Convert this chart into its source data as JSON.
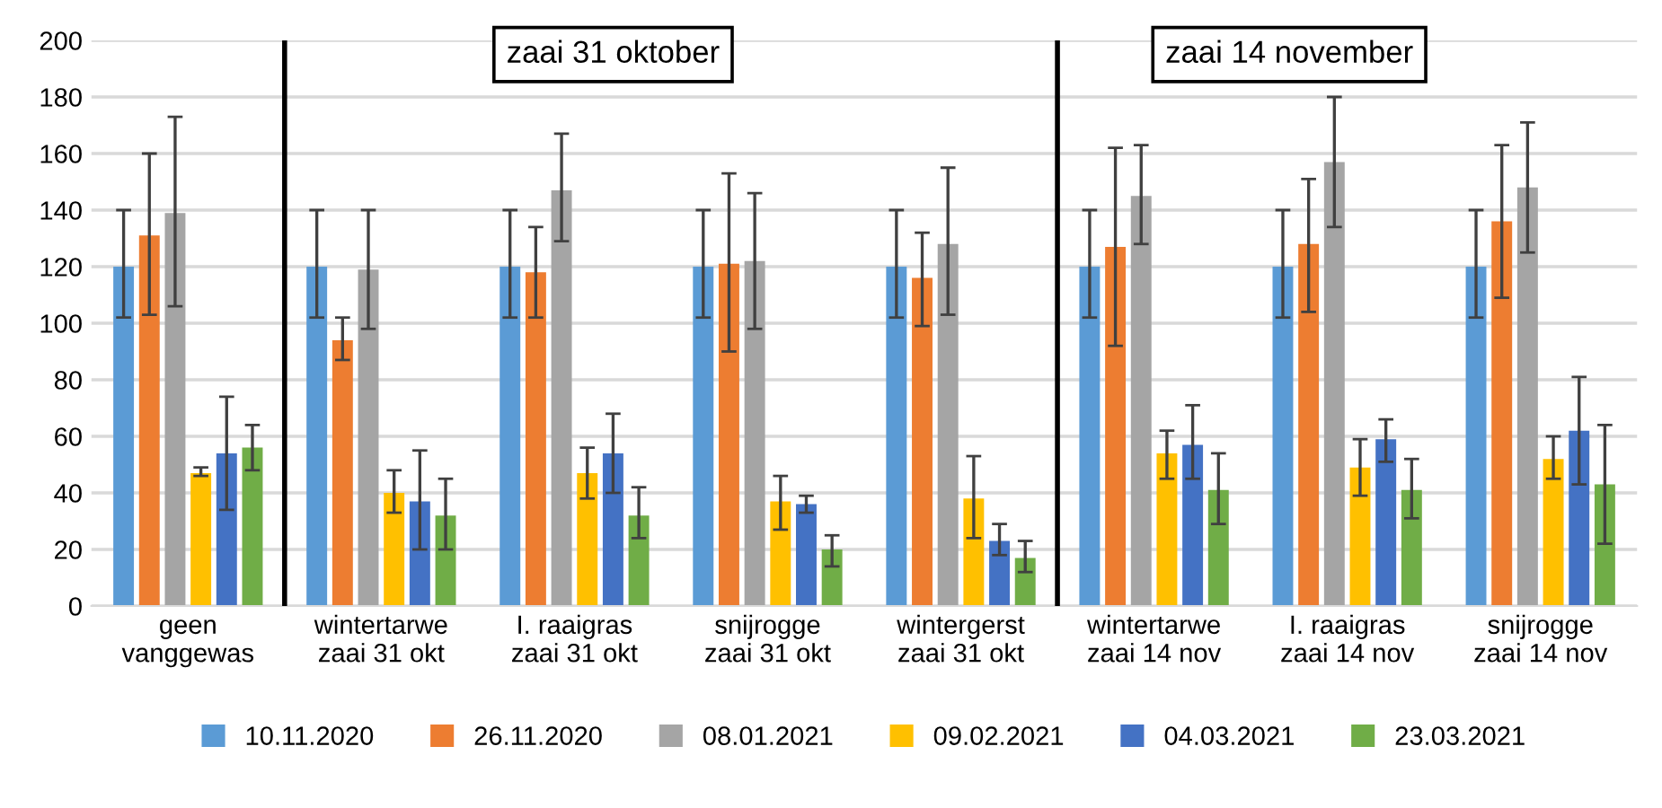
{
  "chart_data": {
    "type": "bar",
    "categories": [
      "geen\nvanggewas",
      "wintertarwe\nzaai 31 okt",
      "I. raaigras\nzaai 31 okt",
      "snijrogge\nzaai 31 okt",
      "wintergerst\nzaai 31 okt",
      "wintertarwe\nzaai 14 nov",
      "I. raaigras\nzaai 14 nov",
      "snijrogge\nzaai 14 nov"
    ],
    "series": [
      {
        "name": "10.11.2020",
        "color": "#5b9bd5",
        "values": [
          120,
          120,
          120,
          120,
          120,
          120,
          120,
          120
        ],
        "errors": [
          [
            102,
            140
          ],
          [
            102,
            140
          ],
          [
            102,
            140
          ],
          [
            102,
            140
          ],
          [
            102,
            140
          ],
          [
            102,
            140
          ],
          [
            102,
            140
          ],
          [
            102,
            140
          ]
        ]
      },
      {
        "name": "26.11.2020",
        "color": "#ed7d31",
        "values": [
          131,
          94,
          118,
          121,
          116,
          127,
          128,
          136
        ],
        "errors": [
          [
            103,
            160
          ],
          [
            87,
            102
          ],
          [
            102,
            134
          ],
          [
            90,
            153
          ],
          [
            99,
            132
          ],
          [
            92,
            162
          ],
          [
            104,
            151
          ],
          [
            109,
            163
          ]
        ]
      },
      {
        "name": "08.01.2021",
        "color": "#a5a5a5",
        "values": [
          139,
          119,
          147,
          122,
          128,
          145,
          157,
          148
        ],
        "errors": [
          [
            106,
            173
          ],
          [
            98,
            140
          ],
          [
            129,
            167
          ],
          [
            98,
            146
          ],
          [
            103,
            155
          ],
          [
            128,
            163
          ],
          [
            134,
            180
          ],
          [
            125,
            171
          ]
        ]
      },
      {
        "name": "09.02.2021",
        "color": "#ffc000",
        "values": [
          47,
          40,
          47,
          37,
          38,
          54,
          49,
          52
        ],
        "errors": [
          [
            46,
            49
          ],
          [
            33,
            48
          ],
          [
            38,
            56
          ],
          [
            27,
            46
          ],
          [
            24,
            53
          ],
          [
            45,
            62
          ],
          [
            39,
            59
          ],
          [
            45,
            60
          ]
        ]
      },
      {
        "name": "04.03.2021",
        "color": "#4472c4",
        "values": [
          54,
          37,
          54,
          36,
          23,
          57,
          59,
          62
        ],
        "errors": [
          [
            34,
            74
          ],
          [
            20,
            55
          ],
          [
            40,
            68
          ],
          [
            33,
            39
          ],
          [
            18,
            29
          ],
          [
            45,
            71
          ],
          [
            51,
            66
          ],
          [
            43,
            81
          ]
        ]
      },
      {
        "name": "23.03.2021",
        "color": "#70ad47",
        "values": [
          56,
          32,
          32,
          20,
          17,
          41,
          41,
          43
        ],
        "errors": [
          [
            48,
            64
          ],
          [
            20,
            45
          ],
          [
            24,
            42
          ],
          [
            14,
            25
          ],
          [
            12,
            23
          ],
          [
            29,
            54
          ],
          [
            31,
            52
          ],
          [
            22,
            64
          ]
        ]
      }
    ],
    "ylim": [
      0,
      200
    ],
    "yticks": [
      0,
      20,
      40,
      60,
      80,
      100,
      120,
      140,
      160,
      180,
      200
    ],
    "grid": "y",
    "legend": "bottom",
    "annotations": [
      "zaai 31 oktober",
      "zaai 14 november"
    ]
  }
}
